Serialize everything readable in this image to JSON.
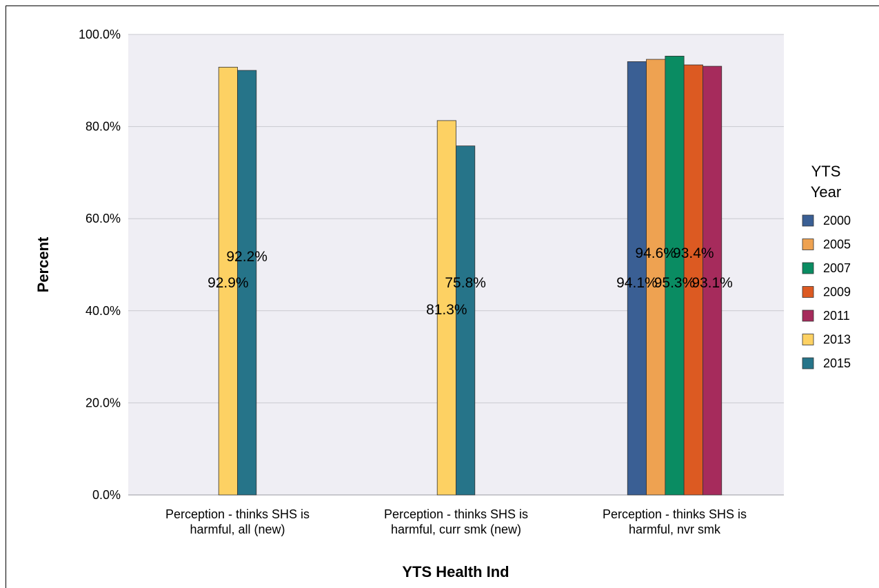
{
  "chart_data": {
    "type": "bar",
    "title": "",
    "xlabel": "YTS Health Ind",
    "ylabel": "Percent",
    "ylim": [
      0,
      100
    ],
    "yticks": [
      "0.0%",
      "20.0%",
      "40.0%",
      "60.0%",
      "80.0%",
      "100.0%"
    ],
    "grid": true,
    "legend_title": "YTS Year",
    "legend_position": "right",
    "categories": [
      "Perception - thinks SHS is harmful, all (new)",
      "Perception - thinks SHS is harmful, curr smk (new)",
      "Perception - thinks SHS is harmful, nvr smk"
    ],
    "series": [
      {
        "name": "2000",
        "color": "#3a5f94",
        "values": [
          null,
          null,
          94.1
        ],
        "labels": [
          null,
          null,
          "94.1%"
        ]
      },
      {
        "name": "2005",
        "color": "#eea251",
        "values": [
          null,
          null,
          94.6
        ],
        "labels": [
          null,
          null,
          "94.6%"
        ]
      },
      {
        "name": "2007",
        "color": "#0a8c62",
        "values": [
          null,
          null,
          95.3
        ],
        "labels": [
          null,
          null,
          "95.3%"
        ]
      },
      {
        "name": "2009",
        "color": "#dc5a22",
        "values": [
          null,
          null,
          93.4
        ],
        "labels": [
          null,
          null,
          "93.4%"
        ]
      },
      {
        "name": "2011",
        "color": "#a62b5c",
        "values": [
          null,
          null,
          93.1
        ],
        "labels": [
          null,
          null,
          "93.1%"
        ]
      },
      {
        "name": "2013",
        "color": "#fdd163",
        "values": [
          92.9,
          81.3,
          null
        ],
        "labels": [
          "92.9%",
          "81.3%",
          null
        ]
      },
      {
        "name": "2015",
        "color": "#267489",
        "values": [
          92.2,
          75.8,
          null
        ],
        "labels": [
          "92.2%",
          "75.8%",
          null
        ]
      }
    ]
  },
  "colors": {
    "plot_background": "#efeef4",
    "gridline": "#c9c9cf",
    "bar_stroke": "#333333"
  }
}
